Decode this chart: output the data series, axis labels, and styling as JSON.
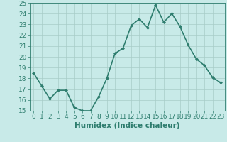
{
  "x": [
    0,
    1,
    2,
    3,
    4,
    5,
    6,
    7,
    8,
    9,
    10,
    11,
    12,
    13,
    14,
    15,
    16,
    17,
    18,
    19,
    20,
    21,
    22,
    23
  ],
  "y": [
    18.5,
    17.3,
    16.1,
    16.9,
    16.9,
    15.3,
    15.0,
    15.0,
    16.3,
    18.0,
    20.3,
    20.8,
    22.9,
    23.5,
    22.7,
    24.8,
    23.2,
    24.0,
    22.8,
    21.1,
    19.8,
    19.2,
    18.1,
    17.6
  ],
  "line_color": "#2e7d6e",
  "marker": "D",
  "marker_size": 2,
  "bg_color": "#c8eae8",
  "grid_color": "#a8ccc8",
  "xlabel": "Humidex (Indice chaleur)",
  "ylim": [
    15,
    25
  ],
  "xlim": [
    -0.5,
    23.5
  ],
  "yticks": [
    15,
    16,
    17,
    18,
    19,
    20,
    21,
    22,
    23,
    24,
    25
  ],
  "xticks": [
    0,
    1,
    2,
    3,
    4,
    5,
    6,
    7,
    8,
    9,
    10,
    11,
    12,
    13,
    14,
    15,
    16,
    17,
    18,
    19,
    20,
    21,
    22,
    23
  ],
  "tick_color": "#2e7d6e",
  "label_fontsize": 7.5,
  "tick_fontsize": 6.5,
  "line_width": 1.2
}
